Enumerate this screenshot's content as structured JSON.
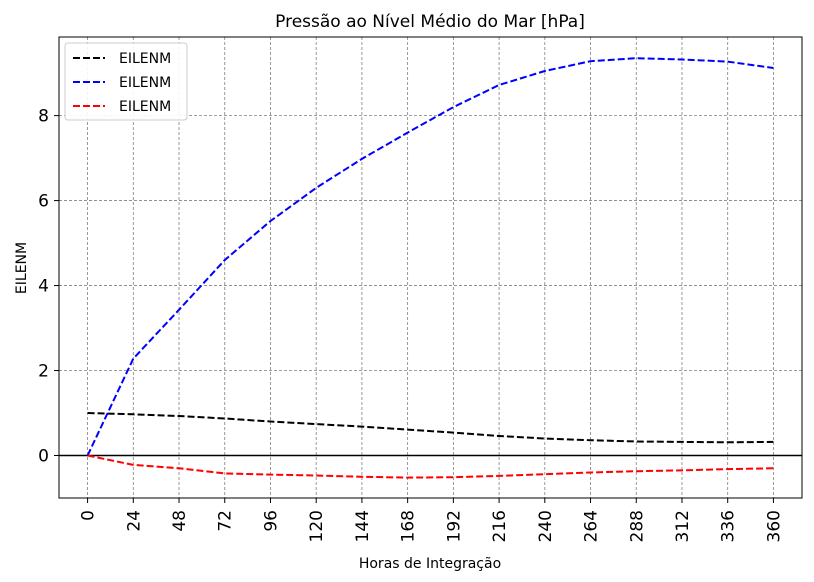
{
  "chart_data": {
    "type": "line",
    "title": "Pressão ao Nível Médio do Mar [hPa]",
    "xlabel": "Horas de Integração",
    "ylabel": "EILENM",
    "xlim": [
      -15,
      375
    ],
    "ylim": [
      -1.0,
      9.85
    ],
    "x_ticks": [
      0,
      24,
      48,
      72,
      96,
      120,
      144,
      168,
      192,
      216,
      240,
      264,
      288,
      312,
      336,
      360
    ],
    "x_tick_labels": [
      "0",
      "24",
      "48",
      "72",
      "96",
      "120",
      "144",
      "168",
      "192",
      "216",
      "240",
      "264",
      "288",
      "312",
      "336",
      "360"
    ],
    "y_ticks": [
      0,
      2,
      4,
      6,
      8
    ],
    "y_tick_labels": [
      "0",
      "2",
      "4",
      "6",
      "8"
    ],
    "grid": true,
    "zero_line": true,
    "legend_position": "top-left",
    "x": [
      0,
      24,
      48,
      72,
      96,
      120,
      144,
      168,
      192,
      216,
      240,
      264,
      288,
      312,
      336,
      360
    ],
    "series": [
      {
        "name": "EILENM",
        "color": "#000000",
        "values": [
          1.0,
          0.97,
          0.93,
          0.87,
          0.8,
          0.74,
          0.68,
          0.61,
          0.54,
          0.46,
          0.4,
          0.36,
          0.33,
          0.32,
          0.31,
          0.32
        ]
      },
      {
        "name": "EILENM",
        "color": "#0000ff",
        "values": [
          0.0,
          2.28,
          3.43,
          4.6,
          5.52,
          6.3,
          6.98,
          7.6,
          8.2,
          8.72,
          9.05,
          9.28,
          9.35,
          9.32,
          9.27,
          9.12
        ]
      },
      {
        "name": "EILENM",
        "color": "#ff0000",
        "values": [
          0.0,
          -0.22,
          -0.3,
          -0.42,
          -0.45,
          -0.47,
          -0.5,
          -0.52,
          -0.51,
          -0.48,
          -0.44,
          -0.4,
          -0.37,
          -0.35,
          -0.32,
          -0.3
        ]
      }
    ]
  }
}
